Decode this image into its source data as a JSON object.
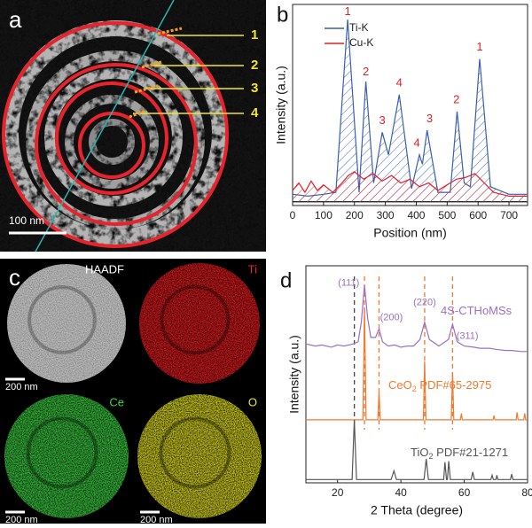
{
  "panels": {
    "a": {
      "letter": "a",
      "labels": [
        "1",
        "2",
        "3",
        "4"
      ],
      "scale_bar": "100 nm"
    },
    "c": {
      "letter": "c",
      "maps": [
        {
          "label": "HAADF",
          "scale_bar": "200 nm"
        },
        {
          "label": "Ti"
        },
        {
          "label": "Ce",
          "scale_bar": "200 nm"
        },
        {
          "label": "O",
          "scale_bar": "200 nm"
        }
      ]
    }
  },
  "chart_data": [
    {
      "type": "line",
      "letter": "b",
      "xlabel": "Position (nm)",
      "ylabel": "Intensity (a.u.)",
      "xlim": [
        0,
        760
      ],
      "xticks": [
        0,
        100,
        200,
        300,
        400,
        500,
        600,
        700
      ],
      "ylim": [
        -0.02,
        1.05
      ],
      "legend": "upper center",
      "series": [
        {
          "name": "Ti-K",
          "color": "#3a5fb0",
          "x": [
            0,
            50,
            100,
            140,
            178,
            215,
            237,
            262,
            290,
            310,
            345,
            385,
            410,
            420,
            435,
            470,
            510,
            532,
            555,
            575,
            605,
            640,
            700,
            760
          ],
          "values": [
            0.04,
            0.03,
            0.04,
            0.05,
            0.97,
            0.05,
            0.64,
            0.1,
            0.37,
            0.25,
            0.57,
            0.07,
            0.25,
            0.2,
            0.38,
            0.05,
            0.05,
            0.48,
            0.1,
            0.08,
            0.76,
            0.08,
            0.04,
            0.04
          ]
        },
        {
          "name": "Cu-K",
          "color": "#e0202a",
          "x": [
            0,
            20,
            40,
            60,
            80,
            100,
            130,
            160,
            180,
            200,
            230,
            260,
            290,
            320,
            350,
            380,
            410,
            440,
            470,
            500,
            530,
            560,
            590,
            620,
            650,
            700,
            760
          ],
          "values": [
            0.06,
            0.1,
            0.05,
            0.11,
            0.06,
            0.09,
            0.05,
            0.1,
            0.14,
            0.16,
            0.12,
            0.15,
            0.11,
            0.14,
            0.1,
            0.12,
            0.08,
            0.1,
            0.06,
            0.09,
            0.12,
            0.13,
            0.15,
            0.1,
            0.05,
            0.03,
            0.03
          ]
        }
      ],
      "annotations": [
        {
          "text": "1",
          "x": 178,
          "y": 1.01
        },
        {
          "text": "2",
          "x": 237,
          "y": 0.69
        },
        {
          "text": "3",
          "x": 290,
          "y": 0.43
        },
        {
          "text": "4",
          "x": 345,
          "y": 0.63
        },
        {
          "text": "4",
          "x": 402,
          "y": 0.31
        },
        {
          "text": "3",
          "x": 443,
          "y": 0.44
        },
        {
          "text": "2",
          "x": 530,
          "y": 0.54
        },
        {
          "text": "1",
          "x": 605,
          "y": 0.82
        }
      ]
    },
    {
      "type": "line",
      "letter": "d",
      "xlabel": "2 Theta (degree)",
      "ylabel": "Intensity (a.u.)",
      "xlim": [
        10,
        80
      ],
      "xticks": [
        20,
        40,
        60,
        80
      ],
      "ylim": [
        0,
        10
      ],
      "series": [
        {
          "label": [
            "4S-CTHoMSs"
          ],
          "color": "#9b6fc8",
          "x": [
            10,
            13,
            15,
            18,
            20,
            22,
            25,
            26.5,
            27.5,
            28.5,
            29.5,
            30.5,
            32,
            33.1,
            34.2,
            36,
            38,
            40,
            42,
            44,
            46,
            47.5,
            49,
            52,
            55,
            56.3,
            57.8,
            60,
            63,
            65,
            68,
            70,
            73,
            75,
            78,
            80
          ],
          "values": [
            6.4,
            6.3,
            6.35,
            6.25,
            6.35,
            6.3,
            6.4,
            6.5,
            7.4,
            9.1,
            7.6,
            6.7,
            6.7,
            7.1,
            6.5,
            6.3,
            6.35,
            6.25,
            6.3,
            6.3,
            6.6,
            7.4,
            6.6,
            6.3,
            6.6,
            7.3,
            6.5,
            6.3,
            6.25,
            6.2,
            6.2,
            6.15,
            6.1,
            6.1,
            6.05,
            6.05
          ]
        },
        {
          "label": [
            "CeO",
            "2",
            " PDF#65-2975"
          ],
          "color": "#f07a30",
          "x": [
            10,
            28,
            28.5,
            29,
            32.7,
            33.1,
            33.5,
            47.1,
            47.5,
            47.9,
            55.9,
            56.3,
            56.7,
            58.8,
            59.1,
            59.4,
            69.1,
            69.4,
            69.7,
            76.4,
            76.7,
            77,
            78.8,
            79.1,
            79.4,
            80
          ],
          "values": [
            2.9,
            2.9,
            8.1,
            2.9,
            2.9,
            4.2,
            2.9,
            2.9,
            5.6,
            2.9,
            2.9,
            5.1,
            2.9,
            2.9,
            3.2,
            2.9,
            2.9,
            3.1,
            2.9,
            2.9,
            3.25,
            2.9,
            2.9,
            3.2,
            2.9,
            2.9
          ]
        },
        {
          "label": [
            "TiO",
            "2",
            " PDF#21-1271"
          ],
          "color": "#555555",
          "x": [
            10,
            24.6,
            25.3,
            26,
            36.9,
            37.8,
            38.6,
            47.3,
            48,
            48.7,
            53.5,
            53.9,
            54.4,
            54.7,
            55.1,
            55.6,
            62.2,
            62.7,
            63.2,
            68.4,
            68.8,
            69.2,
            70,
            70.3,
            70.6,
            74.6,
            75,
            75.4,
            80
          ],
          "values": [
            0.15,
            0.15,
            2.9,
            0.15,
            0.15,
            0.55,
            0.15,
            0.15,
            1.1,
            0.15,
            0.15,
            0.95,
            0.15,
            0.15,
            1.0,
            0.15,
            0.15,
            0.5,
            0.15,
            0.15,
            0.35,
            0.15,
            0.15,
            0.35,
            0.15,
            0.15,
            0.4,
            0.15,
            0.15
          ]
        }
      ],
      "reference_lines": [
        {
          "x": 25.3,
          "color": "#444444"
        },
        {
          "x": 28.5,
          "color": "#f07a30"
        },
        {
          "x": 33.1,
          "color": "#f07a30"
        },
        {
          "x": 47.5,
          "color": "#f07a30"
        },
        {
          "x": 56.3,
          "color": "#f07a30"
        }
      ],
      "annotations": [
        {
          "text": "(111)",
          "x": 23.5,
          "y": 9.2
        },
        {
          "text": "(200)",
          "x": 37,
          "y": 7.6
        },
        {
          "text": "(220)",
          "x": 47.5,
          "y": 8.3
        },
        {
          "text": "(311)",
          "x": 61,
          "y": 6.75
        }
      ]
    }
  ]
}
